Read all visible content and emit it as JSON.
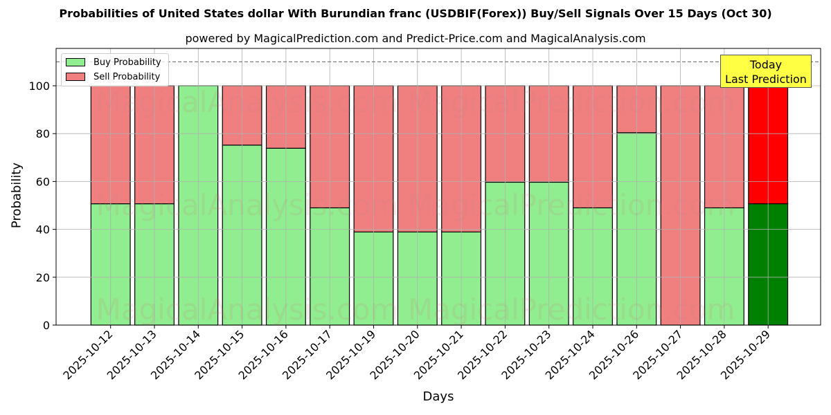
{
  "header": {
    "title": "Probabilities of United States dollar With Burundian franc (USDBIF(Forex)) Buy/Sell Signals Over 15 Days (Oct 30)",
    "subtitle": "powered by MagicalPrediction.com and Predict-Price.com and MagicalAnalysis.com"
  },
  "legend": {
    "buy_label": "Buy Probability",
    "sell_label": "Sell Probability"
  },
  "annotation": {
    "line1": "Today",
    "line2": "Last Prediction"
  },
  "watermark": "MagicalAnalysis.com    MagicalPrediction.com",
  "colors": {
    "buy": "#90ee90",
    "sell": "#f08080",
    "buy_today": "#008000",
    "sell_today": "#ff0000",
    "annotation_bg": "#ffff44"
  },
  "chart_data": {
    "type": "bar",
    "stacked": true,
    "title": "Probabilities of United States dollar With Burundian franc (USDBIF(Forex)) Buy/Sell Signals Over 15 Days (Oct 30)",
    "subtitle": "powered by MagicalPrediction.com and Predict-Price.com and MagicalAnalysis.com",
    "xlabel": "Days",
    "ylabel": "Probability",
    "ylim": [
      0,
      115
    ],
    "yticks": [
      0,
      20,
      40,
      60,
      80,
      100
    ],
    "grid": true,
    "legend_position": "upper left",
    "reference_line": {
      "y": 110,
      "style": "dashed",
      "color": "#808080"
    },
    "categories": [
      "2025-10-12",
      "2025-10-13",
      "2025-10-14",
      "2025-10-15",
      "2025-10-16",
      "2025-10-17",
      "2025-10-19",
      "2025-10-20",
      "2025-10-21",
      "2025-10-22",
      "2025-10-23",
      "2025-10-24",
      "2025-10-26",
      "2025-10-27",
      "2025-10-28",
      "2025-10-29"
    ],
    "series": [
      {
        "name": "Buy Probability",
        "values": [
          50.7,
          50.7,
          100,
          75.2,
          73.9,
          49.0,
          38.9,
          38.9,
          38.9,
          59.7,
          59.7,
          49.0,
          80.4,
          0,
          49.0,
          50.7
        ]
      },
      {
        "name": "Sell Probability",
        "values": [
          49.3,
          49.3,
          0,
          24.8,
          26.1,
          51.0,
          61.1,
          61.1,
          61.1,
          40.3,
          40.3,
          51.0,
          19.6,
          100,
          51.0,
          49.3
        ]
      }
    ],
    "highlight_last": {
      "label": "Today\nLast Prediction"
    }
  }
}
